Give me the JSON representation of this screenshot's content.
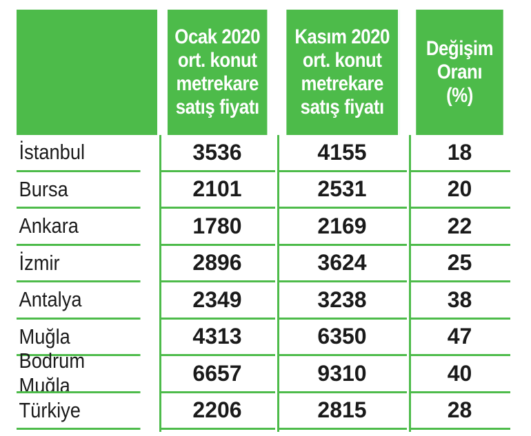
{
  "headers": [
    "",
    "Ocak 2020\nort. konut\nmetrekare\nsatış fiyatı",
    "Kasım 2020\nort. konut\nmetrekare\nsatış fiyatı",
    "Değişim\nOranı\n(%)"
  ],
  "rows": [
    {
      "city": "İstanbul",
      "jan": "3536",
      "nov": "4155",
      "change": "18"
    },
    {
      "city": "Bursa",
      "jan": "2101",
      "nov": "2531",
      "change": "20"
    },
    {
      "city": "Ankara",
      "jan": "1780",
      "nov": "2169",
      "change": "22"
    },
    {
      "city": "İzmir",
      "jan": "2896",
      "nov": "3624",
      "change": "25"
    },
    {
      "city": "Antalya",
      "jan": "2349",
      "nov": "3238",
      "change": "38"
    },
    {
      "city": "Muğla",
      "jan": "4313",
      "nov": "6350",
      "change": "47"
    },
    {
      "city": "Bodrum Muğla",
      "jan": "6657",
      "nov": "9310",
      "change": "40"
    },
    {
      "city": "Türkiye",
      "jan": "2206",
      "nov": "2815",
      "change": "28"
    }
  ],
  "colors": {
    "header_bg": "#4dbb4a",
    "header_text": "#ffffff",
    "grid_line": "#4dbb4a",
    "body_text": "#1a1a1a"
  }
}
